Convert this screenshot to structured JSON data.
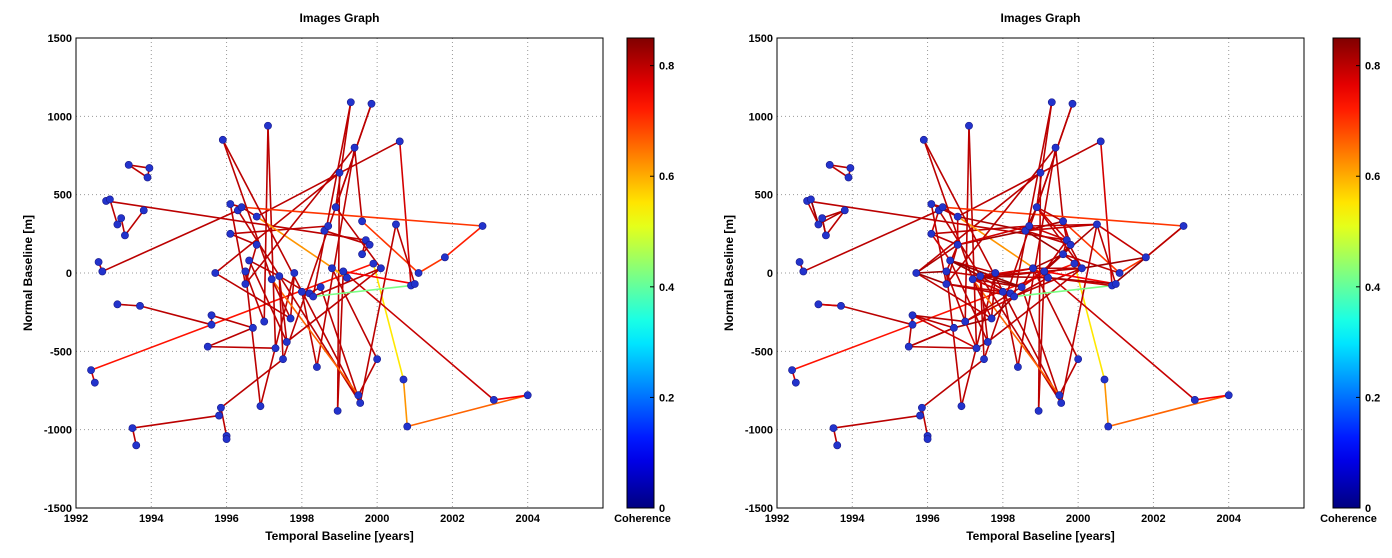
{
  "chart_data": [
    {
      "type": "scatter",
      "title": "Images Graph",
      "xlabel": "Temporal Baseline [years]",
      "ylabel": "Normal Baseline [m]",
      "xlim": [
        1992,
        2006
      ],
      "ylim": [
        -1500,
        1500
      ],
      "xticks": [
        1992,
        1994,
        1996,
        1998,
        2000,
        2002,
        2004
      ],
      "yticks": [
        -1500,
        -1000,
        -500,
        0,
        500,
        1000,
        1500
      ],
      "grid": true,
      "colorbar": {
        "label": "Coherence",
        "range": [
          0,
          0.85
        ],
        "ticks": [
          0,
          0.2,
          0.4,
          0.6,
          0.8
        ]
      },
      "points": [
        [
          1992.4,
          -620
        ],
        [
          1992.5,
          -700
        ],
        [
          1992.6,
          70
        ],
        [
          1992.7,
          10
        ],
        [
          1992.8,
          460
        ],
        [
          1992.9,
          470
        ],
        [
          1993.1,
          310
        ],
        [
          1993.2,
          350
        ],
        [
          1993.3,
          240
        ],
        [
          1993.1,
          -200
        ],
        [
          1993.4,
          690
        ],
        [
          1993.5,
          -990
        ],
        [
          1993.6,
          -1100
        ],
        [
          1993.7,
          -210
        ],
        [
          1993.8,
          400
        ],
        [
          1993.9,
          610
        ],
        [
          1993.95,
          670
        ],
        [
          1995.5,
          -470
        ],
        [
          1995.6,
          -270
        ],
        [
          1995.6,
          -330
        ],
        [
          1995.7,
          0
        ],
        [
          1995.8,
          -910
        ],
        [
          1995.85,
          -860
        ],
        [
          1995.9,
          850
        ],
        [
          1996.0,
          -1040
        ],
        [
          1996.0,
          -1060
        ],
        [
          1996.1,
          250
        ],
        [
          1996.1,
          440
        ],
        [
          1996.3,
          400
        ],
        [
          1996.4,
          420
        ],
        [
          1996.5,
          10
        ],
        [
          1996.5,
          -70
        ],
        [
          1996.6,
          80
        ],
        [
          1996.7,
          -350
        ],
        [
          1996.8,
          360
        ],
        [
          1996.8,
          180
        ],
        [
          1996.9,
          -850
        ],
        [
          1997.0,
          -310
        ],
        [
          1997.1,
          940
        ],
        [
          1997.2,
          -40
        ],
        [
          1997.3,
          -480
        ],
        [
          1997.4,
          -20
        ],
        [
          1997.5,
          -550
        ],
        [
          1997.6,
          -440
        ],
        [
          1997.7,
          -290
        ],
        [
          1997.8,
          0
        ],
        [
          1998.0,
          -120
        ],
        [
          1998.2,
          -130
        ],
        [
          1998.3,
          -150
        ],
        [
          1998.4,
          -600
        ],
        [
          1998.5,
          -90
        ],
        [
          1998.6,
          270
        ],
        [
          1998.7,
          300
        ],
        [
          1998.8,
          30
        ],
        [
          1998.9,
          420
        ],
        [
          1998.95,
          -880
        ],
        [
          1999.0,
          640
        ],
        [
          1999.1,
          10
        ],
        [
          1999.2,
          -30
        ],
        [
          1999.3,
          1090
        ],
        [
          1999.4,
          800
        ],
        [
          1999.5,
          -780
        ],
        [
          1999.55,
          -830
        ],
        [
          1999.6,
          330
        ],
        [
          1999.6,
          120
        ],
        [
          1999.7,
          210
        ],
        [
          1999.8,
          180
        ],
        [
          1999.85,
          1080
        ],
        [
          1999.9,
          60
        ],
        [
          2000.0,
          -550
        ],
        [
          2000.1,
          30
        ],
        [
          2000.5,
          310
        ],
        [
          2000.6,
          840
        ],
        [
          2000.7,
          -680
        ],
        [
          2000.8,
          -980
        ],
        [
          2000.9,
          -80
        ],
        [
          2001.0,
          -70
        ],
        [
          2001.1,
          0
        ],
        [
          2001.8,
          100
        ],
        [
          2002.8,
          300
        ],
        [
          2003.1,
          -810
        ],
        [
          2004.0,
          -780
        ]
      ],
      "edges_count": 93
    },
    {
      "type": "scatter",
      "title": "Images Graph",
      "xlabel": "Temporal Baseline [years]",
      "ylabel": "Normal Baseline [m]",
      "xlim": [
        1992,
        2006
      ],
      "ylim": [
        -1500,
        1500
      ],
      "xticks": [
        1992,
        1994,
        1996,
        1998,
        2000,
        2002,
        2004
      ],
      "yticks": [
        -1500,
        -1000,
        -500,
        0,
        500,
        1000,
        1500
      ],
      "grid": true,
      "colorbar": {
        "label": "Coherence",
        "range": [
          0,
          0.85
        ],
        "ticks": [
          0,
          0.2,
          0.4,
          0.6,
          0.8
        ]
      },
      "points": "same as first panel",
      "edges_count": 260
    }
  ]
}
